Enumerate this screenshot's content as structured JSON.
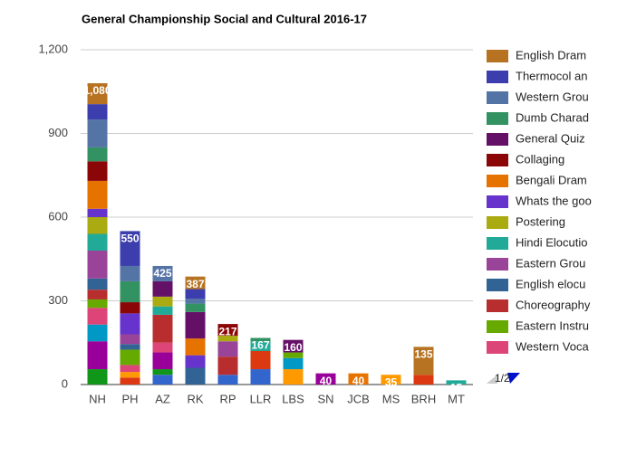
{
  "chart_data": {
    "type": "stacked_bar",
    "title": "General Championship Social and Cultural 2016-17",
    "categories": [
      "NH",
      "PH",
      "AZ",
      "RK",
      "RP",
      "LLR",
      "LBS",
      "SN",
      "JCB",
      "MS",
      "BRH",
      "MT"
    ],
    "ylim": [
      0,
      1200
    ],
    "yticks": [
      0,
      300,
      600,
      900,
      {
        "value": 1200,
        "label": "1,200"
      }
    ],
    "grid": true,
    "series": [
      {
        "color": "#3366cc",
        "values": [
          0,
          0,
          35,
          0,
          35,
          55,
          0,
          0,
          0,
          0,
          0,
          0
        ]
      },
      {
        "color": "#dc3912",
        "values": [
          0,
          25,
          0,
          0,
          0,
          65,
          0,
          0,
          0,
          0,
          35,
          0
        ]
      },
      {
        "color": "#ff9900",
        "values": [
          0,
          20,
          0,
          0,
          0,
          0,
          55,
          0,
          0,
          35,
          0,
          0
        ]
      },
      {
        "color": "#109618",
        "values": [
          55,
          0,
          20,
          0,
          0,
          0,
          0,
          0,
          0,
          0,
          0,
          0
        ]
      },
      {
        "color": "#990099",
        "values": [
          100,
          0,
          60,
          0,
          0,
          0,
          0,
          40,
          0,
          0,
          0,
          0
        ]
      },
      {
        "color": "#0099c6",
        "values": [
          60,
          0,
          0,
          0,
          0,
          0,
          40,
          0,
          0,
          0,
          0,
          0
        ]
      },
      {
        "name": "Western Voca",
        "color": "#dd4477",
        "values": [
          60,
          25,
          35,
          0,
          0,
          0,
          0,
          0,
          0,
          0,
          0,
          0
        ]
      },
      {
        "name": "Eastern Instru",
        "color": "#66aa00",
        "values": [
          30,
          55,
          0,
          0,
          0,
          0,
          20,
          0,
          0,
          0,
          0,
          0
        ]
      },
      {
        "name": "Choreography",
        "color": "#b82e2e",
        "values": [
          35,
          0,
          100,
          0,
          65,
          0,
          0,
          0,
          0,
          0,
          0,
          0
        ]
      },
      {
        "name": "English elocu",
        "color": "#316395",
        "values": [
          40,
          20,
          0,
          60,
          0,
          0,
          0,
          0,
          0,
          0,
          0,
          0
        ]
      },
      {
        "name": "Eastern Grou",
        "color": "#994499",
        "values": [
          100,
          35,
          0,
          0,
          55,
          0,
          0,
          0,
          0,
          0,
          0,
          0
        ]
      },
      {
        "name": "Hindi Elocutio",
        "color": "#22aa99",
        "values": [
          60,
          0,
          30,
          0,
          0,
          35,
          0,
          0,
          0,
          0,
          0,
          15
        ]
      },
      {
        "name": "Postering",
        "color": "#aaaa11",
        "values": [
          60,
          0,
          35,
          0,
          20,
          0,
          0,
          0,
          0,
          0,
          0,
          0
        ]
      },
      {
        "name": "Whats the goo",
        "color": "#6633cc",
        "values": [
          30,
          75,
          0,
          45,
          0,
          0,
          0,
          0,
          0,
          0,
          0,
          0
        ]
      },
      {
        "name": "Bengali Dram",
        "color": "#e67300",
        "values": [
          100,
          0,
          0,
          60,
          0,
          0,
          0,
          0,
          40,
          0,
          0,
          0
        ]
      },
      {
        "name": "Collaging",
        "color": "#8b0707",
        "values": [
          70,
          40,
          0,
          0,
          42,
          0,
          0,
          0,
          0,
          0,
          0,
          0
        ]
      },
      {
        "name": "General Quiz",
        "color": "#651067",
        "values": [
          0,
          0,
          55,
          95,
          0,
          0,
          45,
          0,
          0,
          0,
          0,
          0
        ]
      },
      {
        "name": "Dumb Charad",
        "color": "#329262",
        "values": [
          50,
          75,
          0,
          30,
          0,
          12,
          0,
          0,
          0,
          0,
          0,
          0
        ]
      },
      {
        "name": "Western Grou",
        "color": "#5574a6",
        "values": [
          100,
          55,
          55,
          17,
          0,
          0,
          0,
          0,
          0,
          0,
          0,
          0
        ]
      },
      {
        "name": "Thermocol an",
        "color": "#3b3eac",
        "values": [
          55,
          125,
          0,
          35,
          0,
          0,
          0,
          0,
          0,
          0,
          0,
          0
        ]
      },
      {
        "name": "English Dram",
        "color": "#b77322",
        "values": [
          75,
          0,
          0,
          45,
          0,
          0,
          0,
          0,
          0,
          0,
          100,
          0
        ]
      }
    ],
    "totals": [
      1080,
      550,
      425,
      387,
      217,
      167,
      160,
      40,
      40,
      35,
      135,
      15
    ],
    "totals_labels": [
      "1,080",
      "550",
      "425",
      "387",
      "217",
      "167",
      "160",
      "40",
      "40",
      "35",
      "135",
      "15"
    ],
    "legend_page": "1/2"
  }
}
